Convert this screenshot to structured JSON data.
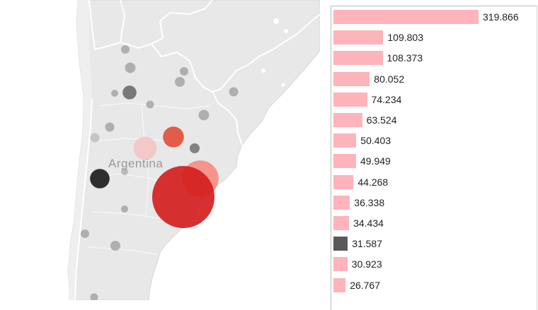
{
  "map": {
    "country_label": "Argentina",
    "colors": {
      "land": "#e8e8e8",
      "land_light": "#efefef",
      "border": "#ffffff",
      "water": "#ffffff"
    },
    "markers": [
      {
        "id": "m01",
        "value": 6,
        "color": "#a9a9a9"
      },
      {
        "id": "m02",
        "value": 9,
        "color": "#a9a9a9"
      },
      {
        "id": "m03",
        "value": 6,
        "color": "#a9a9a9"
      },
      {
        "id": "m04",
        "value": 8,
        "color": "#a9a9a9"
      },
      {
        "id": "m05",
        "value": 4,
        "color": "#a9a9a9"
      },
      {
        "id": "m06",
        "value": 16,
        "color": "#6e6e6e"
      },
      {
        "id": "m07",
        "value": 5,
        "color": "#a9a9a9"
      },
      {
        "id": "m08",
        "value": 7,
        "color": "#a9a9a9"
      },
      {
        "id": "m09",
        "value": 9,
        "color": "#a9a9a9"
      },
      {
        "id": "m10",
        "value": 7,
        "color": "#a9a9a9"
      },
      {
        "id": "m11",
        "value": 7,
        "color": "#c0c0c0"
      },
      {
        "id": "m12",
        "value": 44.268,
        "color": "#f2c4c4"
      },
      {
        "id": "m13",
        "value": 36.338,
        "color": "#e0503c"
      },
      {
        "id": "m14",
        "value": 8,
        "color": "#777777"
      },
      {
        "id": "m15",
        "value": 109.803,
        "color": "#f58c82"
      },
      {
        "id": "m16",
        "value": 4,
        "color": "#b4b4b4"
      },
      {
        "id": "m17",
        "value": 31.587,
        "color": "#1e1e1e"
      },
      {
        "id": "m18",
        "value": 319.866,
        "color": "#d21e1e"
      },
      {
        "id": "m19",
        "value": 4,
        "color": "#a9a9a9"
      },
      {
        "id": "m20",
        "value": 6,
        "color": "#a9a9a9"
      },
      {
        "id": "m21",
        "value": 8,
        "color": "#a9a9a9"
      },
      {
        "id": "m22",
        "value": 5,
        "color": "#a9a9a9"
      }
    ]
  },
  "chart_data": {
    "type": "bar",
    "orientation": "horizontal",
    "sort": "descending",
    "values": [
      319.866,
      109.803,
      108.373,
      80.052,
      74.234,
      63.524,
      50.403,
      49.949,
      44.268,
      36.338,
      34.434,
      31.587,
      30.923,
      26.767
    ],
    "labels": [
      "319.866",
      "109.803",
      "108.373",
      "80.052",
      "74.234",
      "63.524",
      "50.403",
      "49.949",
      "44.268",
      "36.338",
      "34.434",
      "31.587",
      "30.923",
      "26.767"
    ],
    "bar_colors": [
      "#ffb3ba",
      "#ffb3ba",
      "#ffb3ba",
      "#ffb3ba",
      "#ffb3ba",
      "#ffb3ba",
      "#ffb3ba",
      "#ffb3ba",
      "#ffb3ba",
      "#ffb3ba",
      "#ffb3ba",
      "#595959",
      "#ffb3ba",
      "#ffb3ba"
    ],
    "xlim": [
      0,
      319.866
    ],
    "title": "",
    "xlabel": "",
    "ylabel": ""
  }
}
